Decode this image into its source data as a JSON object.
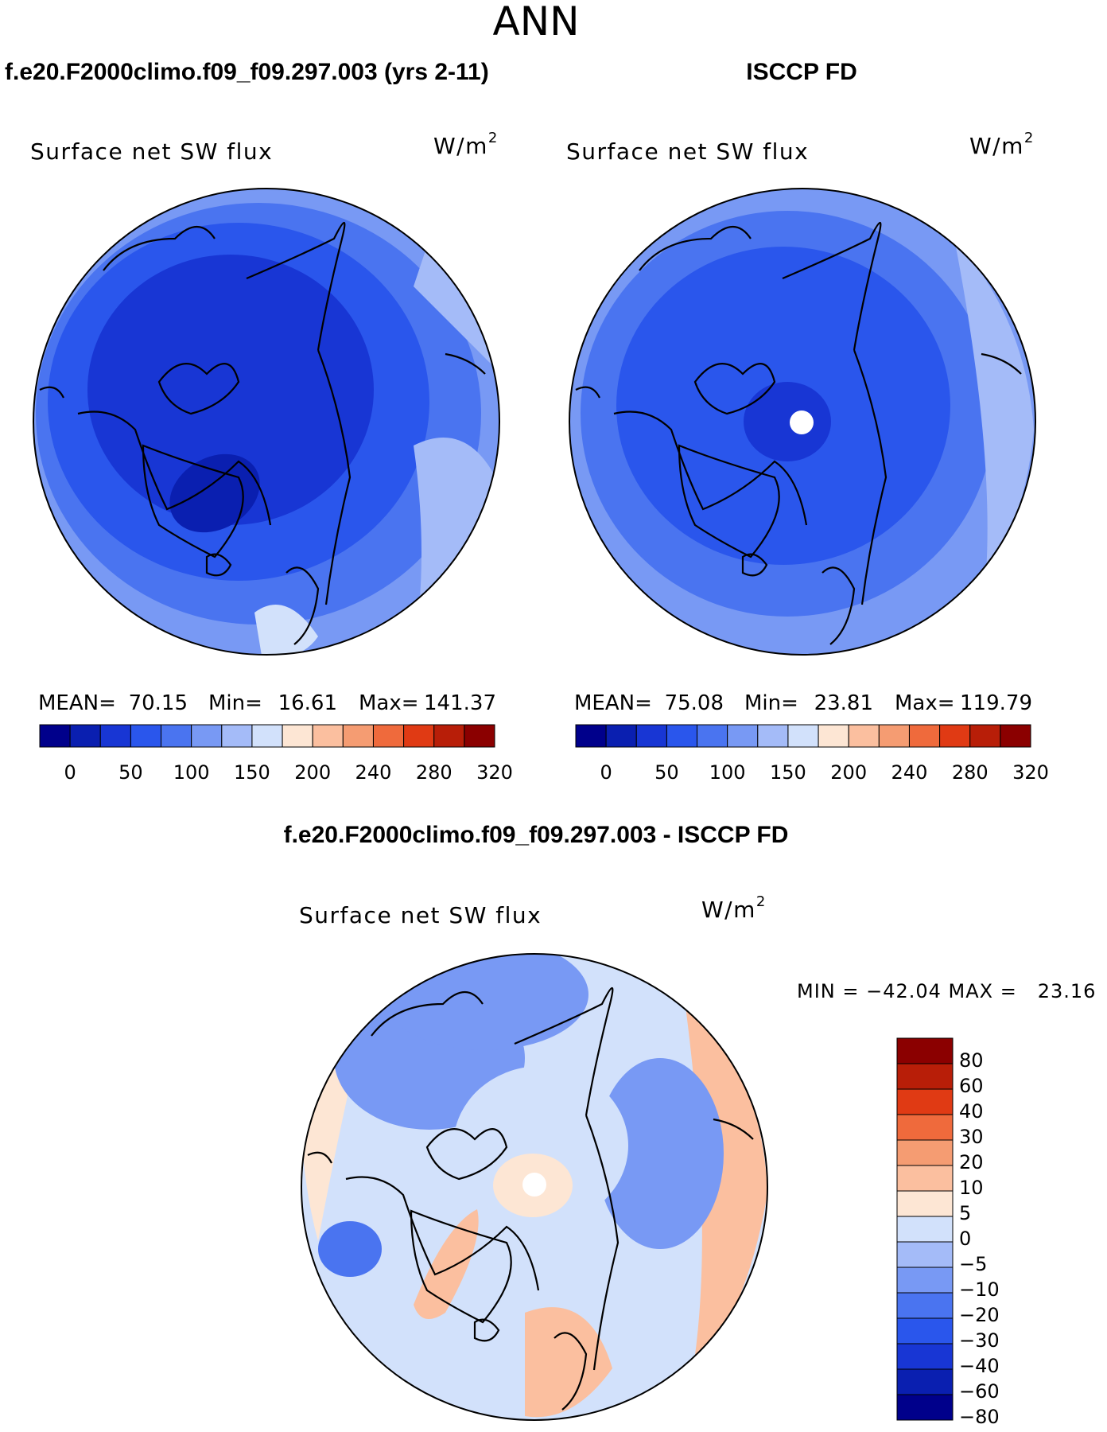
{
  "chart_data": {
    "type": "heatmap",
    "season": "ANN",
    "colors": {
      "abs_scale": [
        "#00008b",
        "#0a1fb0",
        "#1836d4",
        "#2a56ec",
        "#4a74f0",
        "#7899f4",
        "#a4bbf8",
        "#d2e1fb",
        "#fde6d4",
        "#fbbf9f",
        "#f59c72",
        "#ef6a3c",
        "#e03a14",
        "#b81e08",
        "#8b0000"
      ],
      "diff_scale": [
        "#00008b",
        "#0a1fb0",
        "#1836d4",
        "#2a56ec",
        "#4a74f0",
        "#7899f4",
        "#a4bbf8",
        "#d2e1fb",
        "#fde6d4",
        "#fbbf9f",
        "#f59c72",
        "#ef6a3c",
        "#e03a14",
        "#b81e08",
        "#8b0000"
      ],
      "coast": "#000000",
      "pole": "#ffffff"
    },
    "panels": [
      {
        "id": "model",
        "header": "f.e20.F2000climo.f09_f09.297.003 (yrs 2-11)",
        "variable": "Surface net SW flux",
        "units_base": "W/m",
        "units_exp": "2",
        "stats": {
          "mean_label": "MEAN=",
          "mean": "70.15",
          "min_label": "Min=",
          "min": "16.61",
          "max_label": "Max=",
          "max": "141.37"
        },
        "colorbar_ticks": [
          "0",
          "50",
          "100",
          "150",
          "200",
          "240",
          "280",
          "320"
        ]
      },
      {
        "id": "obs",
        "header": "ISCCP FD",
        "variable": "Surface net SW flux",
        "units_base": "W/m",
        "units_exp": "2",
        "stats": {
          "mean_label": "MEAN=",
          "mean": "75.08",
          "min_label": "Min=",
          "min": "23.81",
          "max_label": "Max=",
          "max": "119.79"
        },
        "colorbar_ticks": [
          "0",
          "50",
          "100",
          "150",
          "200",
          "240",
          "280",
          "320"
        ]
      },
      {
        "id": "diff",
        "header": "f.e20.F2000climo.f09_f09.297.003 - ISCCP FD",
        "variable": "Surface net SW flux",
        "units_base": "W/m",
        "units_exp": "2",
        "minmax": "MIN = −42.04 MAX =   23.16",
        "colorbar_ticks": [
          "80",
          "60",
          "40",
          "30",
          "20",
          "10",
          "5",
          "0",
          "−5",
          "−10",
          "−20",
          "−30",
          "−40",
          "−60",
          "−80"
        ]
      }
    ]
  }
}
